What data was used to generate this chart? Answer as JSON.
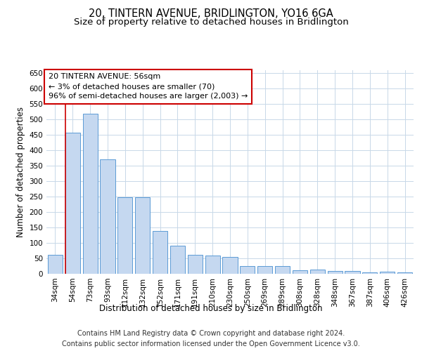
{
  "title": "20, TINTERN AVENUE, BRIDLINGTON, YO16 6GA",
  "subtitle": "Size of property relative to detached houses in Bridlington",
  "xlabel": "Distribution of detached houses by size in Bridlington",
  "ylabel": "Number of detached properties",
  "categories": [
    "34sqm",
    "54sqm",
    "73sqm",
    "93sqm",
    "112sqm",
    "132sqm",
    "152sqm",
    "171sqm",
    "191sqm",
    "210sqm",
    "230sqm",
    "250sqm",
    "269sqm",
    "289sqm",
    "308sqm",
    "328sqm",
    "348sqm",
    "367sqm",
    "387sqm",
    "406sqm",
    "426sqm"
  ],
  "values": [
    62,
    457,
    520,
    370,
    248,
    247,
    138,
    92,
    61,
    59,
    55,
    26,
    25,
    26,
    12,
    13,
    8,
    9,
    5,
    6,
    5
  ],
  "bar_color": "#c5d8f0",
  "bar_edge_color": "#5b9bd5",
  "annotation_text_line1": "20 TINTERN AVENUE: 56sqm",
  "annotation_text_line2": "← 3% of detached houses are smaller (70)",
  "annotation_text_line3": "96% of semi-detached houses are larger (2,003) →",
  "annotation_box_color": "#ffffff",
  "annotation_box_edge_color": "#cc0000",
  "vline_color": "#cc0000",
  "footer_line1": "Contains HM Land Registry data © Crown copyright and database right 2024.",
  "footer_line2": "Contains public sector information licensed under the Open Government Licence v3.0.",
  "ylim": [
    0,
    660
  ],
  "yticks": [
    0,
    50,
    100,
    150,
    200,
    250,
    300,
    350,
    400,
    450,
    500,
    550,
    600,
    650
  ],
  "bg_color": "#ffffff",
  "grid_color": "#c8d8e8",
  "title_fontsize": 10.5,
  "subtitle_fontsize": 9.5,
  "axis_label_fontsize": 8.5,
  "tick_fontsize": 7.5,
  "annotation_fontsize": 8,
  "footer_fontsize": 7
}
